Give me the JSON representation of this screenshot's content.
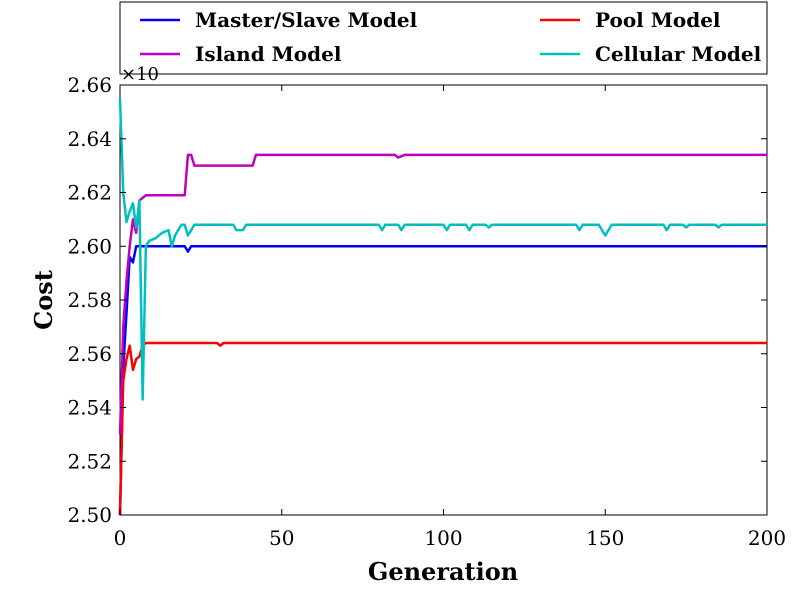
{
  "chart_data": {
    "type": "line",
    "title": "",
    "xlabel": "Generation",
    "ylabel": "Cost",
    "xlim": [
      0,
      200
    ],
    "ylim": [
      2.5,
      2.66
    ],
    "xticks": [
      0,
      50,
      100,
      150,
      200
    ],
    "yticks": [
      2.5,
      2.52,
      2.54,
      2.56,
      2.58,
      2.6,
      2.62,
      2.64,
      2.66
    ],
    "ytick_labels": [
      "2.50",
      "2.52",
      "2.54",
      "2.56",
      "2.58",
      "2.60",
      "2.62",
      "2.64",
      "2.66"
    ],
    "offset_text": "×10",
    "grid": false,
    "legend_position": "top",
    "series": [
      {
        "name": "Master/Slave Model",
        "color": "#0000ff",
        "points": [
          [
            0,
            2.5
          ],
          [
            1,
            2.555
          ],
          [
            2,
            2.575
          ],
          [
            3,
            2.596
          ],
          [
            4,
            2.594
          ],
          [
            5,
            2.6
          ],
          [
            20,
            2.6
          ],
          [
            21,
            2.598
          ],
          [
            22,
            2.6
          ],
          [
            200,
            2.6
          ]
        ]
      },
      {
        "name": "Pool Model",
        "color": "#ff0000",
        "points": [
          [
            0,
            2.5
          ],
          [
            1,
            2.55
          ],
          [
            2,
            2.558
          ],
          [
            3,
            2.563
          ],
          [
            4,
            2.554
          ],
          [
            5,
            2.558
          ],
          [
            6,
            2.559
          ],
          [
            7,
            2.563
          ],
          [
            8,
            2.564
          ],
          [
            30,
            2.564
          ],
          [
            31,
            2.563
          ],
          [
            32,
            2.564
          ],
          [
            200,
            2.564
          ]
        ]
      },
      {
        "name": "Island Model",
        "color": "#bf00bf",
        "points": [
          [
            0,
            2.53
          ],
          [
            1,
            2.57
          ],
          [
            2,
            2.587
          ],
          [
            3,
            2.6
          ],
          [
            4,
            2.61
          ],
          [
            5,
            2.605
          ],
          [
            6,
            2.617
          ],
          [
            7,
            2.618
          ],
          [
            8,
            2.619
          ],
          [
            20,
            2.619
          ],
          [
            21,
            2.634
          ],
          [
            22,
            2.634
          ],
          [
            23,
            2.63
          ],
          [
            41,
            2.63
          ],
          [
            42,
            2.634
          ],
          [
            85,
            2.634
          ],
          [
            86,
            2.633
          ],
          [
            88,
            2.634
          ],
          [
            200,
            2.634
          ]
        ]
      },
      {
        "name": "Cellular Model",
        "color": "#00bfbf",
        "points": [
          [
            0,
            2.655
          ],
          [
            1,
            2.62
          ],
          [
            2,
            2.609
          ],
          [
            3,
            2.613
          ],
          [
            4,
            2.616
          ],
          [
            5,
            2.607
          ],
          [
            6,
            2.617
          ],
          [
            7,
            2.543
          ],
          [
            8,
            2.6
          ],
          [
            9,
            2.602
          ],
          [
            11,
            2.603
          ],
          [
            13,
            2.605
          ],
          [
            15,
            2.606
          ],
          [
            16,
            2.6
          ],
          [
            17,
            2.604
          ],
          [
            19,
            2.608
          ],
          [
            20,
            2.608
          ],
          [
            21,
            2.604
          ],
          [
            22,
            2.606
          ],
          [
            23,
            2.608
          ],
          [
            35,
            2.608
          ],
          [
            36,
            2.606
          ],
          [
            38,
            2.606
          ],
          [
            39,
            2.608
          ],
          [
            80,
            2.608
          ],
          [
            81,
            2.606
          ],
          [
            82,
            2.608
          ],
          [
            86,
            2.608
          ],
          [
            87,
            2.606
          ],
          [
            88,
            2.608
          ],
          [
            100,
            2.608
          ],
          [
            101,
            2.606
          ],
          [
            102,
            2.608
          ],
          [
            107,
            2.608
          ],
          [
            108,
            2.606
          ],
          [
            109,
            2.608
          ],
          [
            113,
            2.608
          ],
          [
            114,
            2.607
          ],
          [
            115,
            2.608
          ],
          [
            141,
            2.608
          ],
          [
            142,
            2.606
          ],
          [
            143,
            2.608
          ],
          [
            148,
            2.608
          ],
          [
            149,
            2.606
          ],
          [
            150,
            2.604
          ],
          [
            151,
            2.606
          ],
          [
            152,
            2.608
          ],
          [
            168,
            2.608
          ],
          [
            169,
            2.606
          ],
          [
            170,
            2.608
          ],
          [
            174,
            2.608
          ],
          [
            175,
            2.607
          ],
          [
            176,
            2.608
          ],
          [
            184,
            2.608
          ],
          [
            185,
            2.607
          ],
          [
            186,
            2.608
          ],
          [
            200,
            2.608
          ]
        ]
      }
    ]
  }
}
